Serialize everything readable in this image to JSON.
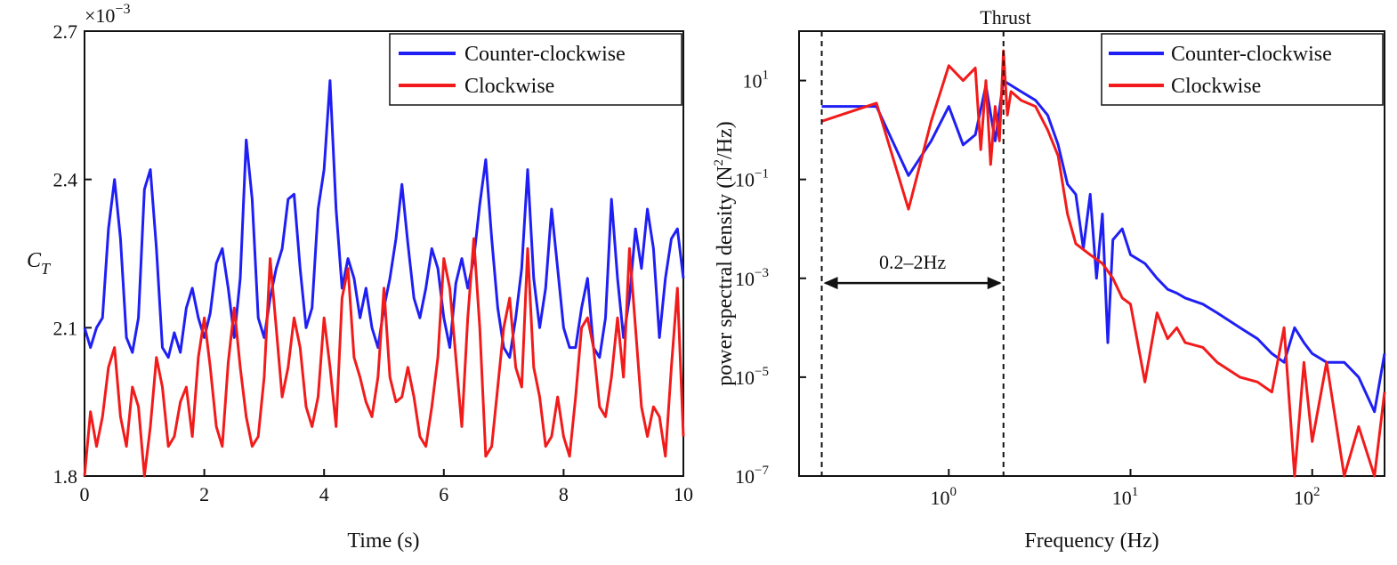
{
  "colors": {
    "counter_clockwise": "#1f1ff5",
    "clockwise": "#f21b1b",
    "axis": "#111111"
  },
  "chart_data": [
    {
      "type": "line",
      "title": "",
      "multiplier_label": "×10",
      "multiplier_exponent": "−3",
      "xlabel": "Time (s)",
      "ylabel": "C",
      "ylabel_sub": "T",
      "xlim": [
        0,
        10
      ],
      "ylim": [
        1.8,
        2.7
      ],
      "x_ticks": [
        0,
        2,
        4,
        6,
        8,
        10
      ],
      "x_tick_labels": [
        "0",
        "2",
        "4",
        "6",
        "8",
        "10"
      ],
      "y_ticks": [
        1.8,
        2.1,
        2.4,
        2.7
      ],
      "y_tick_labels": [
        "1.8",
        "2.1",
        "2.4",
        "2.7"
      ],
      "legend_position": "top-right",
      "grid": false,
      "series": [
        {
          "name": "Counter-clockwise",
          "color": "#1f1ff5",
          "x": [
            0,
            0.1,
            0.2,
            0.3,
            0.4,
            0.5,
            0.6,
            0.7,
            0.8,
            0.9,
            1.0,
            1.1,
            1.2,
            1.3,
            1.4,
            1.5,
            1.6,
            1.7,
            1.8,
            1.9,
            2.0,
            2.1,
            2.2,
            2.3,
            2.4,
            2.5,
            2.6,
            2.7,
            2.8,
            2.9,
            3.0,
            3.1,
            3.2,
            3.3,
            3.4,
            3.5,
            3.6,
            3.7,
            3.8,
            3.9,
            4.0,
            4.1,
            4.2,
            4.3,
            4.4,
            4.5,
            4.6,
            4.7,
            4.8,
            4.9,
            5.0,
            5.1,
            5.2,
            5.3,
            5.4,
            5.5,
            5.6,
            5.7,
            5.8,
            5.9,
            6.0,
            6.1,
            6.2,
            6.3,
            6.4,
            6.5,
            6.6,
            6.7,
            6.8,
            6.9,
            7.0,
            7.1,
            7.2,
            7.3,
            7.4,
            7.5,
            7.6,
            7.7,
            7.8,
            7.9,
            8.0,
            8.1,
            8.2,
            8.3,
            8.4,
            8.5,
            8.6,
            8.7,
            8.8,
            8.9,
            9.0,
            9.1,
            9.2,
            9.3,
            9.4,
            9.5,
            9.6,
            9.7,
            9.8,
            9.9,
            10.0
          ],
          "y": [
            2.1,
            2.06,
            2.1,
            2.12,
            2.3,
            2.4,
            2.28,
            2.08,
            2.05,
            2.12,
            2.38,
            2.42,
            2.26,
            2.06,
            2.04,
            2.09,
            2.05,
            2.14,
            2.18,
            2.12,
            2.08,
            2.13,
            2.23,
            2.26,
            2.18,
            2.08,
            2.2,
            2.48,
            2.36,
            2.12,
            2.08,
            2.16,
            2.22,
            2.26,
            2.36,
            2.37,
            2.22,
            2.1,
            2.14,
            2.34,
            2.42,
            2.6,
            2.34,
            2.18,
            2.24,
            2.2,
            2.12,
            2.18,
            2.1,
            2.06,
            2.14,
            2.2,
            2.28,
            2.39,
            2.27,
            2.16,
            2.12,
            2.18,
            2.26,
            2.22,
            2.12,
            2.06,
            2.19,
            2.24,
            2.18,
            2.24,
            2.35,
            2.44,
            2.28,
            2.14,
            2.06,
            2.04,
            2.12,
            2.22,
            2.42,
            2.2,
            2.1,
            2.18,
            2.34,
            2.22,
            2.1,
            2.06,
            2.06,
            2.14,
            2.2,
            2.06,
            2.04,
            2.12,
            2.36,
            2.2,
            2.08,
            2.16,
            2.3,
            2.22,
            2.34,
            2.26,
            2.08,
            2.2,
            2.28,
            2.3,
            2.2
          ]
        },
        {
          "name": "Clockwise",
          "color": "#f21b1b",
          "x": [
            0,
            0.1,
            0.2,
            0.3,
            0.4,
            0.5,
            0.6,
            0.7,
            0.8,
            0.9,
            1.0,
            1.1,
            1.2,
            1.3,
            1.4,
            1.5,
            1.6,
            1.7,
            1.8,
            1.9,
            2.0,
            2.1,
            2.2,
            2.3,
            2.4,
            2.5,
            2.6,
            2.7,
            2.8,
            2.9,
            3.0,
            3.1,
            3.2,
            3.3,
            3.4,
            3.5,
            3.6,
            3.7,
            3.8,
            3.9,
            4.0,
            4.1,
            4.2,
            4.3,
            4.4,
            4.5,
            4.6,
            4.7,
            4.8,
            4.9,
            5.0,
            5.1,
            5.2,
            5.3,
            5.4,
            5.5,
            5.6,
            5.7,
            5.8,
            5.9,
            6.0,
            6.1,
            6.2,
            6.3,
            6.4,
            6.5,
            6.6,
            6.7,
            6.8,
            6.9,
            7.0,
            7.1,
            7.2,
            7.3,
            7.4,
            7.5,
            7.6,
            7.7,
            7.8,
            7.9,
            8.0,
            8.1,
            8.2,
            8.3,
            8.4,
            8.5,
            8.6,
            8.7,
            8.8,
            8.9,
            9.0,
            9.1,
            9.2,
            9.3,
            9.4,
            9.5,
            9.6,
            9.7,
            9.8,
            9.9,
            10.0
          ],
          "y": [
            1.8,
            1.93,
            1.86,
            1.92,
            2.02,
            2.06,
            1.92,
            1.86,
            1.98,
            1.94,
            1.8,
            1.9,
            2.04,
            1.98,
            1.86,
            1.88,
            1.95,
            1.98,
            1.88,
            2.04,
            2.12,
            2.02,
            1.9,
            1.86,
            2.03,
            2.14,
            2.02,
            1.92,
            1.86,
            1.88,
            2.0,
            2.24,
            2.1,
            1.96,
            2.02,
            2.12,
            2.06,
            1.94,
            1.9,
            1.96,
            2.12,
            2.02,
            1.9,
            2.16,
            2.22,
            2.04,
            2.0,
            1.95,
            1.92,
            2.0,
            2.18,
            2.0,
            1.95,
            1.96,
            2.02,
            1.96,
            1.88,
            1.86,
            1.94,
            2.04,
            2.24,
            2.18,
            2.04,
            1.9,
            2.12,
            2.28,
            2.1,
            1.84,
            1.86,
            1.98,
            2.1,
            2.16,
            2.02,
            1.98,
            2.26,
            2.02,
            1.96,
            1.86,
            1.88,
            1.96,
            1.88,
            1.84,
            1.96,
            2.1,
            2.12,
            2.06,
            1.94,
            1.92,
            2.0,
            2.12,
            2.0,
            2.26,
            2.1,
            1.94,
            1.88,
            1.94,
            1.92,
            1.84,
            2.02,
            2.18,
            1.88
          ]
        }
      ]
    },
    {
      "type": "line",
      "title": "Thrust",
      "xlabel": "Frequency (Hz)",
      "ylabel": "power spectral density (N",
      "ylabel_sup": "2",
      "ylabel_tail": "/Hz)",
      "x_scale": "log",
      "y_scale": "log",
      "xlim": [
        0.15,
        250
      ],
      "ylim": [
        1e-07,
        100
      ],
      "x_ticks": [
        1,
        10,
        100
      ],
      "x_tick_labels": [
        "10",
        "10",
        "10"
      ],
      "x_tick_exponents": [
        "0",
        "1",
        "2"
      ],
      "y_ticks": [
        1e-07,
        1e-05,
        0.001,
        0.1,
        10
      ],
      "y_tick_labels": [
        "10",
        "10",
        "10",
        "10",
        "10"
      ],
      "y_tick_exponents": [
        "−7",
        "−5",
        "−3",
        "−1",
        "1"
      ],
      "legend_position": "top-right",
      "grid": false,
      "annotation": {
        "text": "0.2–2Hz",
        "x_from": 0.2,
        "x_to": 2,
        "y": 0.0008
      },
      "vlines": [
        0.2,
        2
      ],
      "series": [
        {
          "name": "Counter-clockwise",
          "color": "#1f1ff5",
          "x": [
            0.2,
            0.4,
            0.6,
            0.8,
            1.0,
            1.2,
            1.4,
            1.6,
            1.8,
            2.0,
            2.2,
            2.5,
            3.0,
            3.5,
            4.0,
            4.5,
            5.0,
            5.5,
            6.0,
            6.5,
            7.0,
            7.5,
            8.0,
            9.0,
            10,
            12,
            14,
            16,
            18,
            20,
            25,
            30,
            40,
            50,
            60,
            70,
            80,
            90,
            100,
            120,
            150,
            180,
            220,
            250
          ],
          "y": [
            3,
            3,
            0.12,
            0.6,
            3,
            0.5,
            0.8,
            8,
            0.6,
            10,
            8,
            6,
            4,
            2,
            0.5,
            0.08,
            0.05,
            0.004,
            0.05,
            0.001,
            0.02,
            5e-05,
            0.006,
            0.01,
            0.003,
            0.002,
            0.001,
            0.0006,
            0.0005,
            0.0004,
            0.0003,
            0.0002,
            0.0001,
            6e-05,
            3e-05,
            2e-05,
            0.0001,
            5e-05,
            3e-05,
            2e-05,
            2e-05,
            1e-05,
            2e-06,
            3e-05
          ]
        },
        {
          "name": "Clockwise",
          "color": "#f21b1b",
          "x": [
            0.2,
            0.4,
            0.6,
            0.8,
            1.0,
            1.2,
            1.4,
            1.5,
            1.6,
            1.7,
            1.8,
            1.9,
            2.0,
            2.1,
            2.2,
            2.5,
            3.0,
            3.5,
            4.0,
            4.5,
            5.0,
            6.0,
            7.0,
            8.0,
            9.0,
            10,
            12,
            14,
            16,
            18,
            20,
            25,
            30,
            40,
            50,
            60,
            70,
            80,
            90,
            100,
            120,
            150,
            180,
            220,
            250
          ],
          "y": [
            1.5,
            3.5,
            0.025,
            1.5,
            20,
            10,
            18,
            0.4,
            10,
            0.2,
            3,
            0.6,
            40,
            2,
            6,
            4,
            3,
            1,
            0.3,
            0.02,
            0.005,
            0.003,
            0.002,
            0.001,
            0.0004,
            0.0003,
            8e-06,
            0.0002,
            6e-05,
            0.0001,
            5e-05,
            4e-05,
            2e-05,
            1e-05,
            8e-06,
            5e-06,
            0.0001,
            1e-07,
            2e-05,
            5e-07,
            2e-05,
            1e-07,
            1e-06,
            1e-07,
            5e-06
          ]
        }
      ]
    }
  ]
}
